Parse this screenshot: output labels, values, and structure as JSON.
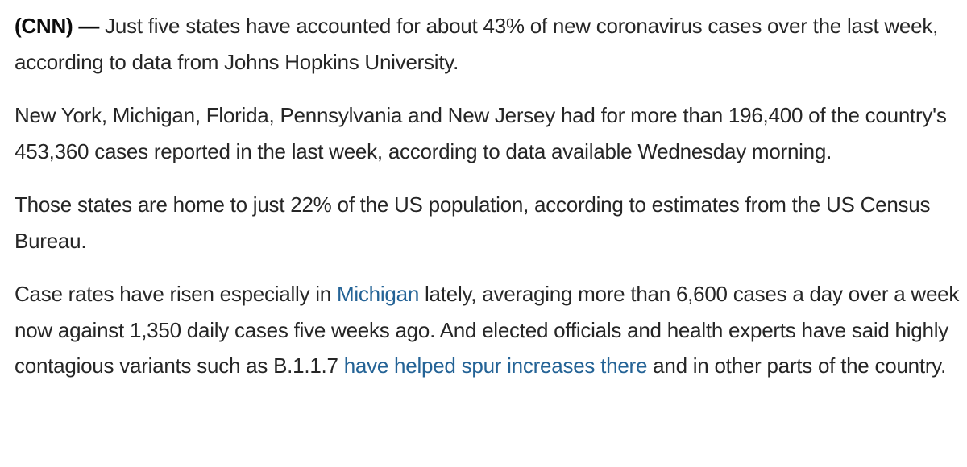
{
  "article": {
    "p1": {
      "dateline": "(CNN) —",
      "text": " Just five states have accounted for about 43% of new coronavirus cases over the last week, according to data from Johns Hopkins University."
    },
    "p2": {
      "text": "New York, Michigan, Florida, Pennsylvania and New Jersey had for more than 196,400 of the country's 453,360 cases reported in the last week, according to data available Wednesday morning."
    },
    "p3": {
      "text": "Those states are home to just 22% of the US population, according to estimates from the US Census Bureau."
    },
    "p4": {
      "text_before_link1": "Case rates have risen especially in ",
      "link1": "Michigan",
      "text_after_link1": " lately, averaging more than 6,600 cases a day over a week now against 1,350 daily cases five weeks ago. And elected officials and health experts have said highly contagious variants such as B.1.1.7 ",
      "link2": "have helped spur increases there",
      "text_after_link2": " and in other parts of the country."
    },
    "link_color": "#246396",
    "text_color": "#262626"
  }
}
